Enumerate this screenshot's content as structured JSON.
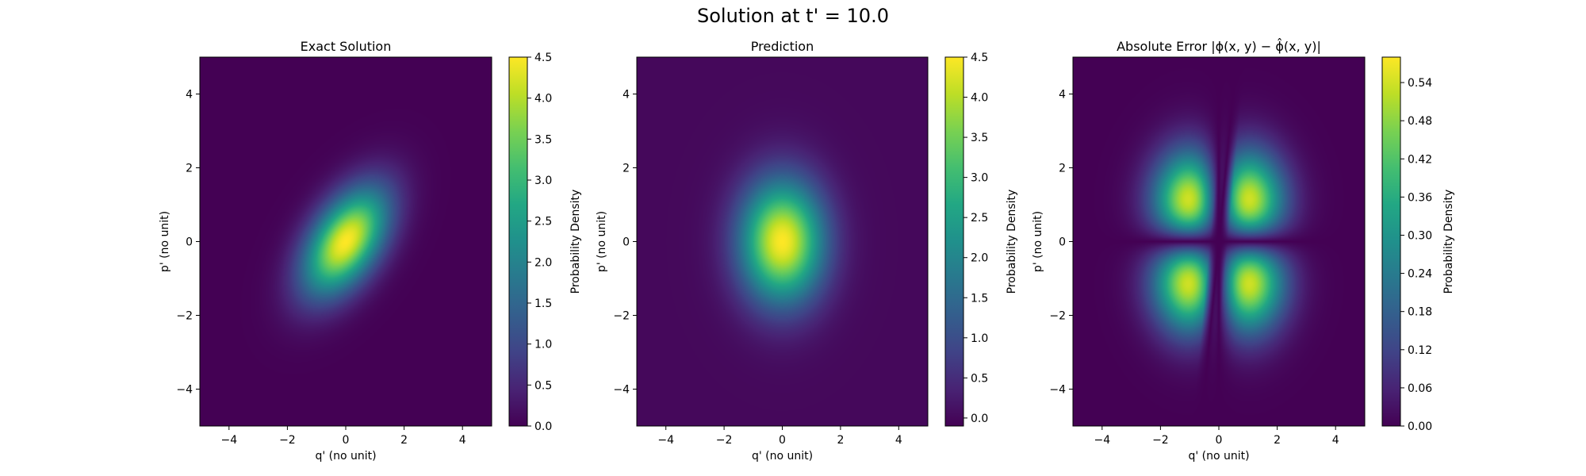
{
  "figure": {
    "suptitle": "Solution at t' = 10.0"
  },
  "chart_data": [
    {
      "type": "heatmap",
      "title": "Exact Solution",
      "xlabel": "q' (no unit)",
      "ylabel": "p' (no unit)",
      "xlim": [
        -5,
        5
      ],
      "ylim": [
        -5,
        5
      ],
      "xticks": [
        -4,
        -2,
        0,
        2,
        4
      ],
      "yticks": [
        -4,
        -2,
        0,
        2,
        4
      ],
      "xtick_labels": [
        "−4",
        "−2",
        "0",
        "2",
        "4"
      ],
      "ytick_labels": [
        "−4",
        "−2",
        "0",
        "2",
        "4"
      ],
      "colormap": "viridis",
      "colorbar": {
        "label": "Probability Density",
        "range": [
          0,
          4.5
        ],
        "ticks": [
          0,
          0.5,
          1.0,
          1.5,
          2.0,
          2.5,
          3.0,
          3.5,
          4.0,
          4.5
        ],
        "tick_labels": [
          "0.0",
          "0.5",
          "1.0",
          "1.5",
          "2.0",
          "2.5",
          "3.0",
          "3.5",
          "4.0",
          "4.5"
        ]
      },
      "field": {
        "kind": "tilted-gaussian",
        "peak": 4.5,
        "center": [
          0,
          0
        ],
        "sigma_q": 1.0,
        "sigma_p": 1.0,
        "correlation": 0.5
      },
      "grid": false
    },
    {
      "type": "heatmap",
      "title": "Prediction",
      "xlabel": "q' (no unit)",
      "ylabel": "p' (no unit)",
      "xlim": [
        -5,
        5
      ],
      "ylim": [
        -5,
        5
      ],
      "xticks": [
        -4,
        -2,
        0,
        2,
        4
      ],
      "yticks": [
        -4,
        -2,
        0,
        2,
        4
      ],
      "xtick_labels": [
        "−4",
        "−2",
        "0",
        "2",
        "4"
      ],
      "ytick_labels": [
        "−4",
        "−2",
        "0",
        "2",
        "4"
      ],
      "colormap": "viridis",
      "colorbar": {
        "label": "Probability Density",
        "range": [
          -0.1,
          4.5
        ],
        "ticks": [
          0,
          0.5,
          1.0,
          1.5,
          2.0,
          2.5,
          3.0,
          3.5,
          4.0,
          4.5
        ],
        "tick_labels": [
          "0.0",
          "0.5",
          "1.0",
          "1.5",
          "2.0",
          "2.5",
          "3.0",
          "3.5",
          "4.0",
          "4.5"
        ]
      },
      "field": {
        "kind": "gaussian",
        "peak": 4.5,
        "center": [
          0,
          0
        ],
        "sigma_q": 1.0,
        "sigma_p": 1.15,
        "correlation": 0.0
      },
      "grid": false
    },
    {
      "type": "heatmap",
      "title": "Absolute Error |ϕ(x, y) − ϕ̂(x, y)|",
      "xlabel": "q' (no unit)",
      "ylabel": "p' (no unit)",
      "xlim": [
        -5,
        5
      ],
      "ylim": [
        -5,
        5
      ],
      "xticks": [
        -4,
        -2,
        0,
        2,
        4
      ],
      "yticks": [
        -4,
        -2,
        0,
        2,
        4
      ],
      "xtick_labels": [
        "−4",
        "−2",
        "0",
        "2",
        "4"
      ],
      "ytick_labels": [
        "−4",
        "−2",
        "0",
        "2",
        "4"
      ],
      "colormap": "viridis",
      "colorbar": {
        "label": "Probability Density",
        "range": [
          0,
          0.58
        ],
        "ticks": [
          0,
          0.06,
          0.12,
          0.18,
          0.24,
          0.3,
          0.36,
          0.42,
          0.48,
          0.54
        ],
        "tick_labels": [
          "0.00",
          "0.06",
          "0.12",
          "0.18",
          "0.24",
          "0.30",
          "0.36",
          "0.42",
          "0.48",
          "0.54"
        ]
      },
      "field": {
        "kind": "four-lobe",
        "peak": 0.58,
        "lobe_centers": [
          [
            -1.1,
            1.0
          ],
          [
            1.1,
            1.0
          ],
          [
            -1.1,
            -1.0
          ],
          [
            1.1,
            -1.0
          ]
        ]
      },
      "grid": false
    }
  ]
}
